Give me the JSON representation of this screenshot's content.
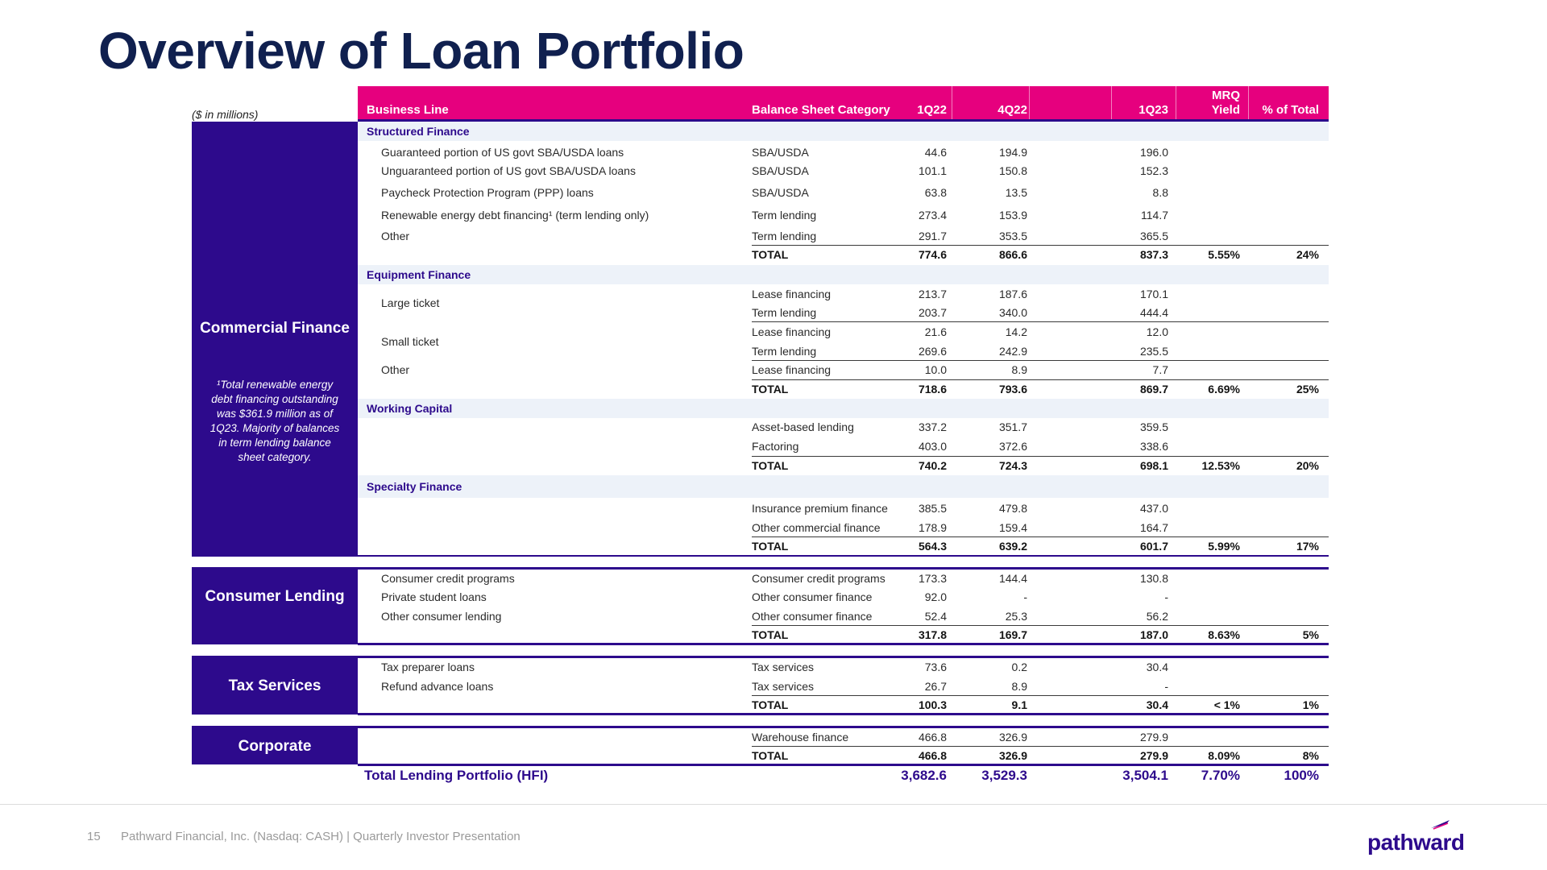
{
  "title": "Overview of Loan Portfolio",
  "units": "($ in millions)",
  "header": {
    "business_line": "Business Line",
    "category": "Balance Sheet Category",
    "q1_22": "1Q22",
    "q4_22": "4Q22",
    "q1_23": "1Q23",
    "yield_l1": "MRQ",
    "yield_l2": "Yield",
    "pct_total": "% of Total"
  },
  "segments": {
    "commercial": "Commercial Finance",
    "commercial_note": "¹Total renewable energy debt financing outstanding was $361.9 million as of 1Q23. Majority of balances in term lending balance sheet category.",
    "consumer": "Consumer Lending",
    "tax": "Tax Services",
    "corporate": "Corporate"
  },
  "groups": {
    "structured": "Structured Finance",
    "equipment": "Equipment Finance",
    "working": "Working Capital",
    "specialty": "Specialty Finance"
  },
  "labels": {
    "large_ticket": "Large ticket",
    "small_ticket": "Small ticket",
    "other": "Other",
    "total": "TOTAL"
  },
  "rows": {
    "sf1": {
      "bl": "Guaranteed portion of US govt SBA/USDA loans",
      "cat": "SBA/USDA",
      "q1": "44.6",
      "q4": "194.9",
      "q23": "196.0"
    },
    "sf2": {
      "bl": "Unguaranteed portion of US govt SBA/USDA loans",
      "cat": "SBA/USDA",
      "q1": "101.1",
      "q4": "150.8",
      "q23": "152.3"
    },
    "sf3": {
      "bl": "Paycheck Protection Program (PPP) loans",
      "cat": "SBA/USDA",
      "q1": "63.8",
      "q4": "13.5",
      "q23": "8.8"
    },
    "sf4": {
      "bl": "Renewable energy debt financing¹ (term lending only)",
      "cat": "Term lending",
      "q1": "273.4",
      "q4": "153.9",
      "q23": "114.7"
    },
    "sf5": {
      "bl": "Other",
      "cat": "Term lending",
      "q1": "291.7",
      "q4": "353.5",
      "q23": "365.5"
    },
    "sf_total": {
      "q1": "774.6",
      "q4": "866.6",
      "q23": "837.3",
      "yield": "5.55%",
      "pct": "24%"
    },
    "eq1": {
      "cat": "Lease financing",
      "q1": "213.7",
      "q4": "187.6",
      "q23": "170.1"
    },
    "eq2": {
      "cat": "Term lending",
      "q1": "203.7",
      "q4": "340.0",
      "q23": "444.4"
    },
    "eq3": {
      "cat": "Lease financing",
      "q1": "21.6",
      "q4": "14.2",
      "q23": "12.0"
    },
    "eq4": {
      "cat": "Term lending",
      "q1": "269.6",
      "q4": "242.9",
      "q23": "235.5"
    },
    "eq5": {
      "cat": "Lease financing",
      "q1": "10.0",
      "q4": "8.9",
      "q23": "7.7"
    },
    "eq_total": {
      "q1": "718.6",
      "q4": "793.6",
      "q23": "869.7",
      "yield": "6.69%",
      "pct": "25%"
    },
    "wc1": {
      "cat": "Asset-based lending",
      "q1": "337.2",
      "q4": "351.7",
      "q23": "359.5"
    },
    "wc2": {
      "cat": "Factoring",
      "q1": "403.0",
      "q4": "372.6",
      "q23": "338.6"
    },
    "wc_total": {
      "q1": "740.2",
      "q4": "724.3",
      "q23": "698.1",
      "yield": "12.53%",
      "pct": "20%"
    },
    "sp1": {
      "cat": "Insurance premium finance",
      "q1": "385.5",
      "q4": "479.8",
      "q23": "437.0"
    },
    "sp2": {
      "cat": "Other commercial finance",
      "q1": "178.9",
      "q4": "159.4",
      "q23": "164.7"
    },
    "sp_total": {
      "q1": "564.3",
      "q4": "639.2",
      "q23": "601.7",
      "yield": "5.99%",
      "pct": "17%"
    },
    "cl1": {
      "bl": "Consumer credit programs",
      "cat": "Consumer credit programs",
      "q1": "173.3",
      "q4": "144.4",
      "q23": "130.8"
    },
    "cl2": {
      "bl": "Private student loans",
      "cat": "Other consumer finance",
      "q1": "92.0",
      "q4": "-",
      "q23": "-"
    },
    "cl3": {
      "bl": "Other consumer lending",
      "cat": "Other consumer finance",
      "q1": "52.4",
      "q4": "25.3",
      "q23": "56.2"
    },
    "cl_total": {
      "q1": "317.8",
      "q4": "169.7",
      "q23": "187.0",
      "yield": "8.63%",
      "pct": "5%"
    },
    "ts1": {
      "bl": "Tax preparer loans",
      "cat": "Tax services",
      "q1": "73.6",
      "q4": "0.2",
      "q23": "30.4"
    },
    "ts2": {
      "bl": "Refund advance loans",
      "cat": "Tax services",
      "q1": "26.7",
      "q4": "8.9",
      "q23": "-"
    },
    "ts_total": {
      "q1": "100.3",
      "q4": "9.1",
      "q23": "30.4",
      "yield": "< 1%",
      "pct": "1%"
    },
    "co1": {
      "cat": "Warehouse finance",
      "q1": "466.8",
      "q4": "326.9",
      "q23": "279.9"
    },
    "co_total": {
      "q1": "466.8",
      "q4": "326.9",
      "q23": "279.9",
      "yield": "8.09%",
      "pct": "8%"
    }
  },
  "grand_total": {
    "label": "Total Lending Portfolio (HFI)",
    "q1": "3,682.6",
    "q4": "3,529.3",
    "q23": "3,504.1",
    "yield": "7.70%",
    "pct": "100%"
  },
  "footer": {
    "page": "15",
    "text": "Pathward Financial, Inc. (Nasdaq: CASH) | Quarterly Investor Presentation",
    "logo": "pathward",
    "brand_color": "#2d0a8c",
    "accent_color": "#e6007e"
  }
}
